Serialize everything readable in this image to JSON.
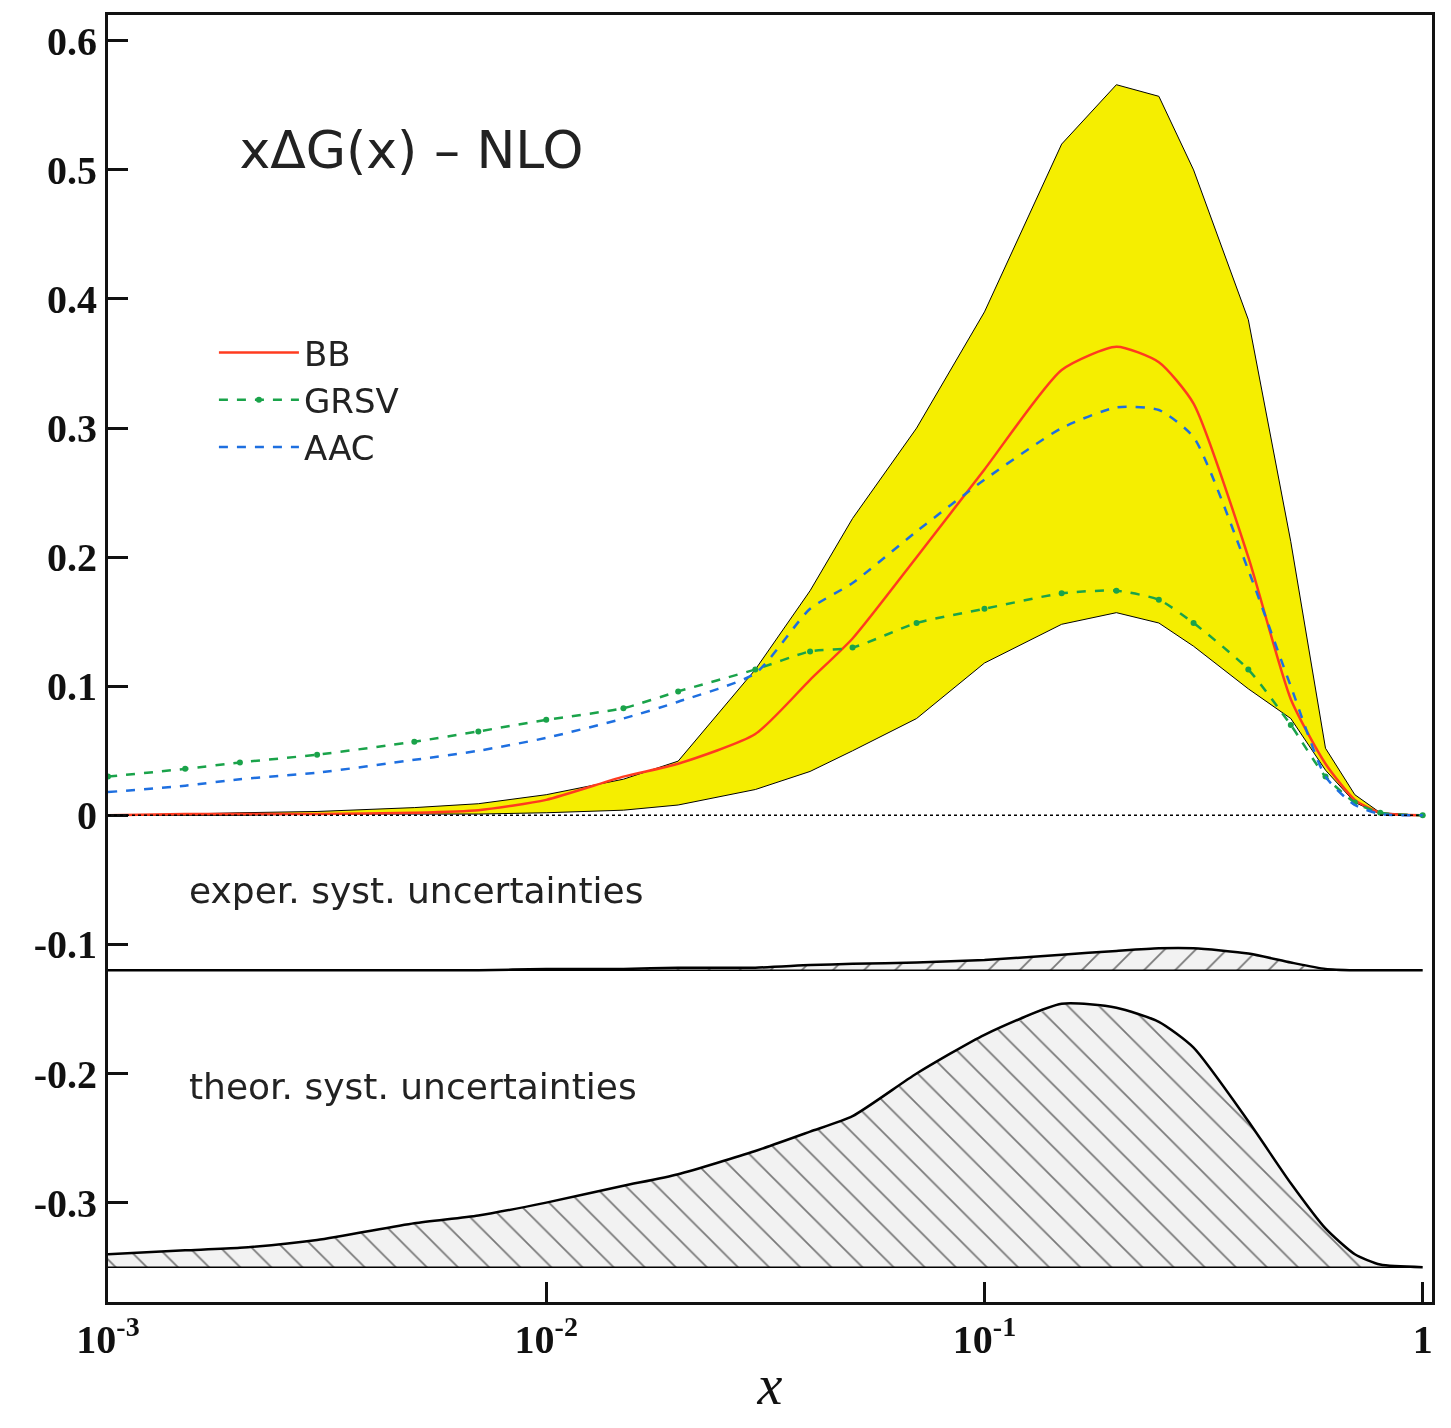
{
  "chart_data": {
    "type": "line",
    "title": "xΔG(x) – NLO",
    "xlabel": "x",
    "x": [
      0.001,
      0.0015,
      0.002,
      0.003,
      0.005,
      0.007,
      0.01,
      0.015,
      0.02,
      0.03,
      0.04,
      0.05,
      0.07,
      0.1,
      0.15,
      0.2,
      0.25,
      0.3,
      0.4,
      0.5,
      0.6,
      0.7,
      0.8,
      1.0
    ],
    "series": [
      {
        "name": "BB",
        "color": "#ff3b1f",
        "line_style": "solid",
        "marker": "none",
        "values": [
          0,
          0.001,
          0.001,
          0.001,
          0.002,
          0.004,
          0.012,
          0.03,
          0.04,
          0.063,
          0.105,
          0.137,
          0.2,
          0.268,
          0.345,
          0.363,
          0.351,
          0.319,
          0.2,
          0.09,
          0.04,
          0.012,
          0.002,
          0
        ],
        "lower": [
          0,
          0,
          0,
          0.001,
          0.001,
          0.001,
          0.002,
          0.004,
          0.008,
          0.02,
          0.034,
          0.05,
          0.075,
          0.118,
          0.148,
          0.157,
          0.149,
          0.131,
          0.098,
          0.075,
          0.035,
          0.01,
          0.001,
          0
        ],
        "upper": [
          0,
          0.001,
          0.002,
          0.003,
          0.006,
          0.009,
          0.016,
          0.028,
          0.042,
          0.113,
          0.174,
          0.23,
          0.3,
          0.39,
          0.52,
          0.566,
          0.557,
          0.5,
          0.384,
          0.212,
          0.052,
          0.016,
          0.002,
          0
        ]
      },
      {
        "name": "GRSV",
        "color": "#1aa34a",
        "line_style": "dashed",
        "marker": "circle",
        "values": [
          0.03,
          0.036,
          0.041,
          0.047,
          0.057,
          0.065,
          0.074,
          0.083,
          0.096,
          0.113,
          0.127,
          0.13,
          0.149,
          0.16,
          0.172,
          0.174,
          0.167,
          0.149,
          0.113,
          0.07,
          0.03,
          0.01,
          0.002,
          0
        ]
      },
      {
        "name": "AAC",
        "color": "#1e6fe0",
        "line_style": "dashed",
        "marker": "none",
        "values": [
          0.018,
          0.023,
          0.028,
          0.033,
          0.043,
          0.05,
          0.06,
          0.075,
          0.088,
          0.11,
          0.16,
          0.18,
          0.22,
          0.26,
          0.3,
          0.316,
          0.314,
          0.293,
          0.19,
          0.1,
          0.03,
          0.008,
          0.001,
          0
        ]
      },
      {
        "color": "#000000",
        "line_style": "solid",
        "marker": "none",
        "upper": [
          -0.12,
          -0.12,
          -0.12,
          -0.12,
          -0.12,
          -0.12,
          -0.119,
          -0.119,
          -0.118,
          -0.118,
          -0.116,
          -0.115,
          -0.114,
          -0.112,
          -0.108,
          -0.105,
          -0.103,
          -0.103,
          -0.107,
          -0.114,
          -0.119,
          -0.12,
          -0.12,
          -0.12
        ],
        "values": [
          -0.12,
          -0.12,
          -0.12,
          -0.12,
          -0.12,
          -0.12,
          -0.119,
          -0.119,
          -0.118,
          -0.118,
          -0.116,
          -0.115,
          -0.114,
          -0.112,
          -0.108,
          -0.105,
          -0.103,
          -0.103,
          -0.107,
          -0.114,
          -0.119,
          -0.12,
          -0.12,
          -0.12
        ],
        "lower": [
          -0.12,
          -0.12,
          -0.12,
          -0.12,
          -0.12,
          -0.12,
          -0.12,
          -0.12,
          -0.12,
          -0.12,
          -0.12,
          -0.12,
          -0.12,
          -0.12,
          -0.12,
          -0.12,
          -0.12,
          -0.12,
          -0.12,
          -0.12,
          -0.12,
          -0.12,
          -0.12,
          -0.12
        ]
      },
      {
        "color": "#000000",
        "line_style": "solid",
        "marker": "none",
        "upper": [
          -0.34,
          -0.337,
          -0.335,
          -0.329,
          -0.316,
          -0.31,
          -0.3,
          -0.287,
          -0.278,
          -0.26,
          -0.245,
          -0.233,
          -0.2,
          -0.17,
          -0.146,
          -0.149,
          -0.16,
          -0.18,
          -0.237,
          -0.285,
          -0.32,
          -0.34,
          -0.348,
          -0.35
        ],
        "values": [
          -0.34,
          -0.337,
          -0.335,
          -0.329,
          -0.316,
          -0.31,
          -0.3,
          -0.287,
          -0.278,
          -0.26,
          -0.245,
          -0.233,
          -0.2,
          -0.17,
          -0.146,
          -0.149,
          -0.16,
          -0.18,
          -0.237,
          -0.285,
          -0.32,
          -0.34,
          -0.348,
          -0.35
        ],
        "lower": [
          -0.35,
          -0.35,
          -0.35,
          -0.35,
          -0.35,
          -0.35,
          -0.35,
          -0.35,
          -0.35,
          -0.35,
          -0.35,
          -0.35,
          -0.35,
          -0.35,
          -0.35,
          -0.35,
          -0.35,
          -0.35,
          -0.35,
          -0.35,
          -0.35,
          -0.35,
          -0.35,
          -0.35
        ]
      }
    ],
    "annotations": [
      "exper. syst. uncertainties",
      "theor. syst. uncertainties"
    ],
    "ref_lines": [
      {
        "axis": "y",
        "value": 0,
        "color": "#000000",
        "line_style": "dotted"
      },
      {
        "axis": "y",
        "value": -0.12,
        "color": "#000000",
        "line_style": "solid"
      },
      {
        "axis": "y",
        "value": -0.35,
        "color": "#000000",
        "line_style": "solid"
      }
    ],
    "log": "x",
    "xlim": [
      0.001,
      1.05
    ],
    "xticks": [
      {
        "value": 0.001,
        "label": "10$^{-3}$"
      },
      {
        "value": 0.01,
        "label": "10$^{-2}$"
      },
      {
        "value": 0.1,
        "label": "10$^{-1}$"
      },
      1
    ],
    "ylim": [
      -0.377,
      0.62
    ],
    "yticks": [
      -0.3,
      -0.2,
      -0.1,
      0,
      0.1,
      0.2,
      0.3,
      0.4,
      0.5,
      0.6
    ],
    "legend": "top left"
  }
}
